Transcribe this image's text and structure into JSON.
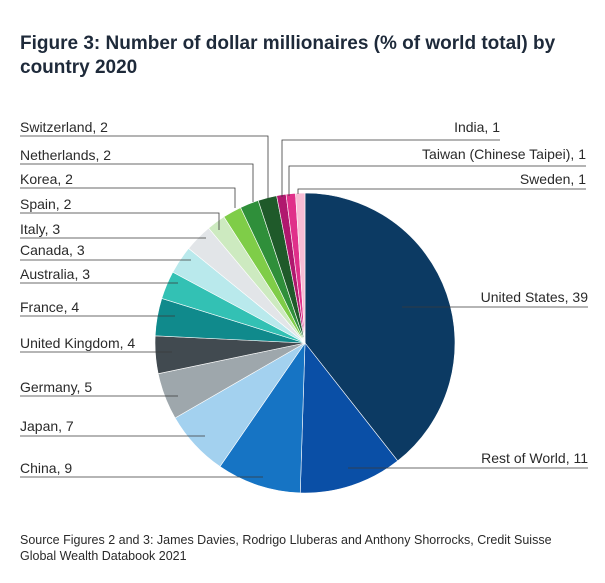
{
  "chart_data": {
    "type": "pie",
    "title": "Figure 3: Number of dollar millionaires (% of world total) by country 2020",
    "unit": "% of world total",
    "slices": [
      {
        "label": "United States",
        "value": 39,
        "display": "United States, 39",
        "color": "#0c3a63"
      },
      {
        "label": "Rest of World",
        "value": 11,
        "display": "Rest of World, 11",
        "color": "#0a4fa6"
      },
      {
        "label": "China",
        "value": 9,
        "display": "China, 9",
        "color": "#1674c4"
      },
      {
        "label": "Japan",
        "value": 7,
        "display": "Japan, 7",
        "color": "#a3d1ef"
      },
      {
        "label": "Germany",
        "value": 5,
        "display": "Germany, 5",
        "color": "#9ea7ac"
      },
      {
        "label": "United Kingdom",
        "value": 4,
        "display": "United Kingdom, 4",
        "color": "#414a50"
      },
      {
        "label": "France",
        "value": 4,
        "display": "France, 4",
        "color": "#108a8c"
      },
      {
        "label": "Australia",
        "value": 3,
        "display": "Australia, 3",
        "color": "#33c1b4"
      },
      {
        "label": "Canada",
        "value": 3,
        "display": "Canada, 3",
        "color": "#b9e9ec"
      },
      {
        "label": "Italy",
        "value": 3,
        "display": "Italy, 3",
        "color": "#e2e5e8"
      },
      {
        "label": "Spain",
        "value": 2,
        "display": "Spain, 2",
        "color": "#cdeac0"
      },
      {
        "label": "Korea",
        "value": 2,
        "display": "Korea, 2",
        "color": "#7fcd48"
      },
      {
        "label": "Netherlands",
        "value": 2,
        "display": "Netherlands, 2",
        "color": "#2f8f3a"
      },
      {
        "label": "Switzerland",
        "value": 2,
        "display": "Switzerland, 2",
        "color": "#1f5a2a"
      },
      {
        "label": "India",
        "value": 1,
        "display": "India, 1",
        "color": "#b0186e"
      },
      {
        "label": "Taiwan (Chinese Taipei)",
        "value": 1,
        "display": "Taiwan (Chinese Taipei), 1",
        "color": "#e0308a"
      },
      {
        "label": "Sweden",
        "value": 1,
        "display": "Sweden, 1",
        "color": "#f7bcd4"
      }
    ]
  },
  "source": "Source Figures 2 and 3: James Davies, Rodrigo Lluberas and Anthony Shorrocks, Credit Suisse Global Wealth Databook 2021"
}
